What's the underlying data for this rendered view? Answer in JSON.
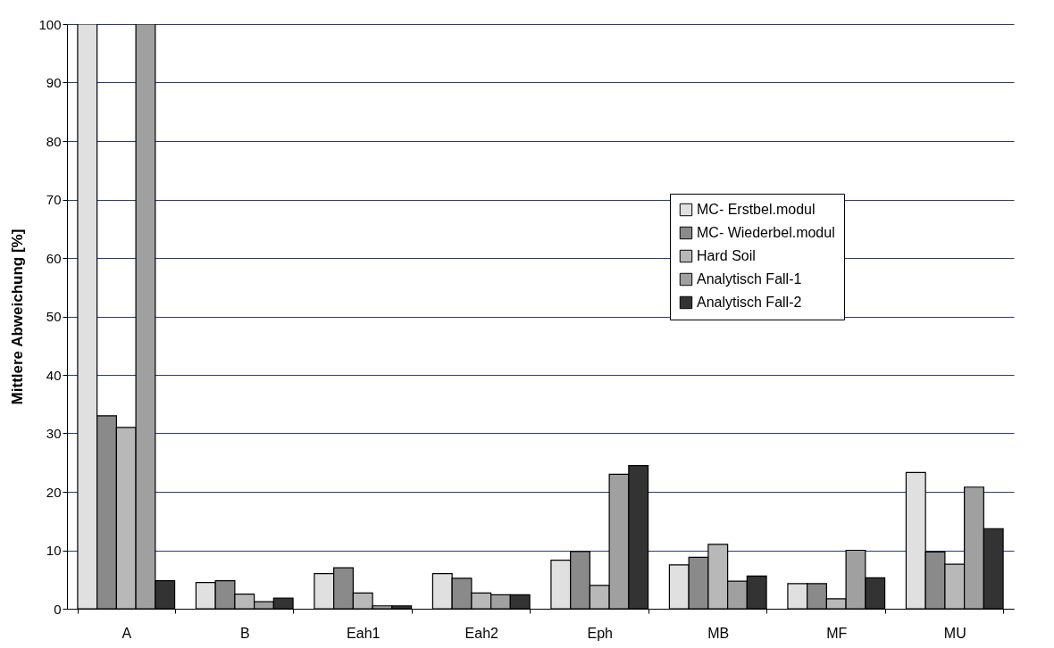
{
  "chart_data": {
    "type": "bar",
    "ylabel": "Mittlere Abweichung  [%]",
    "categories": [
      "A",
      "B",
      "Eah1",
      "Eah2",
      "Eph",
      "MB",
      "MF",
      "MU"
    ],
    "series": [
      {
        "name": "MC- Erstbel.modul",
        "color": "#e0e0e0",
        "values": [
          100,
          4.5,
          6,
          6,
          8.3,
          7.5,
          4.3,
          23.3
        ]
      },
      {
        "name": "MC- Wiederbel.modul",
        "color": "#8a8a8a",
        "values": [
          33,
          4.8,
          7,
          5.2,
          9.8,
          8.8,
          4.3,
          9.7
        ]
      },
      {
        "name": "Hard Soil",
        "color": "#b8b8b8",
        "values": [
          31,
          2.5,
          2.7,
          2.7,
          4,
          11,
          1.7,
          7.6
        ]
      },
      {
        "name": "Analytisch Fall-1",
        "color": "#a0a0a0",
        "values": [
          100,
          1.2,
          0.5,
          2.4,
          23,
          4.7,
          10,
          20.8
        ]
      },
      {
        "name": "Analytisch Fall-2",
        "color": "#333333",
        "values": [
          4.8,
          1.8,
          0.5,
          2.4,
          24.5,
          5.6,
          5.3,
          13.7
        ]
      }
    ],
    "ylim": [
      0,
      100
    ],
    "yticks": [
      0,
      10,
      20,
      30,
      40,
      50,
      60,
      70,
      80,
      90,
      100
    ],
    "grid": "y",
    "legend": "top right"
  }
}
